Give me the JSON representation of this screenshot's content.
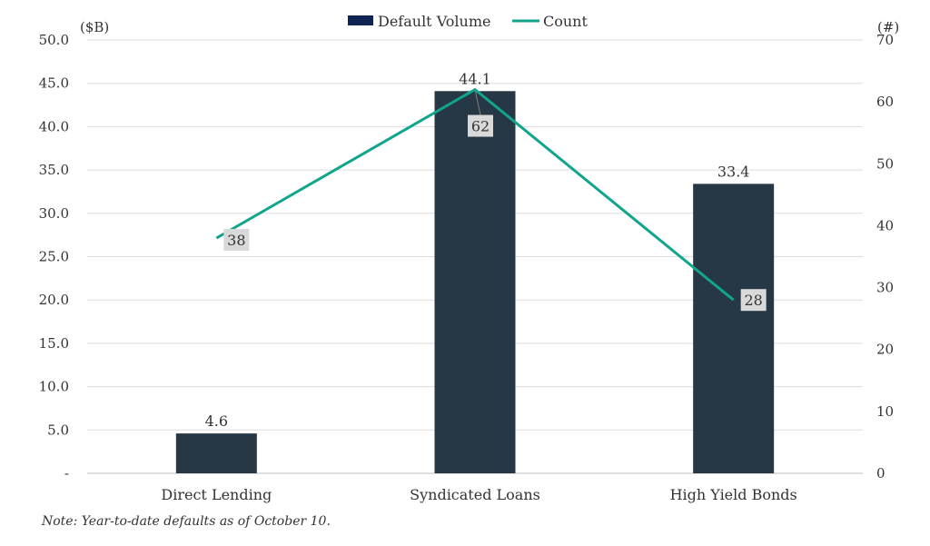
{
  "chart_data": {
    "type": "bar",
    "categories": [
      "Direct Lending",
      "Syndicated Loans",
      "High Yield Bonds"
    ],
    "series": [
      {
        "name": "Default Volume",
        "type": "bar",
        "axis": "left",
        "color": "#263746",
        "values": [
          4.6,
          44.1,
          33.4
        ],
        "labels": [
          "4.6",
          "44.1",
          "33.4"
        ]
      },
      {
        "name": "Count",
        "type": "line",
        "axis": "right",
        "color": "#12A58E",
        "values": [
          38,
          62,
          28
        ],
        "labels": [
          "38",
          "62",
          "28"
        ]
      }
    ],
    "left_axis": {
      "unit": "($B)",
      "ylim": [
        0,
        50
      ],
      "ticks": [
        "-",
        "5.0",
        "10.0",
        "15.0",
        "20.0",
        "25.0",
        "30.0",
        "35.0",
        "40.0",
        "45.0",
        "50.0"
      ]
    },
    "right_axis": {
      "unit": "(#)",
      "ylim": [
        0,
        70
      ],
      "ticks": [
        "0",
        "10",
        "20",
        "30",
        "40",
        "50",
        "60",
        "70"
      ]
    },
    "legend": {
      "position": "top-center",
      "colors": {
        "bar_legend": "#0F2453"
      }
    },
    "grid": true,
    "note": "Note: Year-to-date defaults as of October 10."
  }
}
